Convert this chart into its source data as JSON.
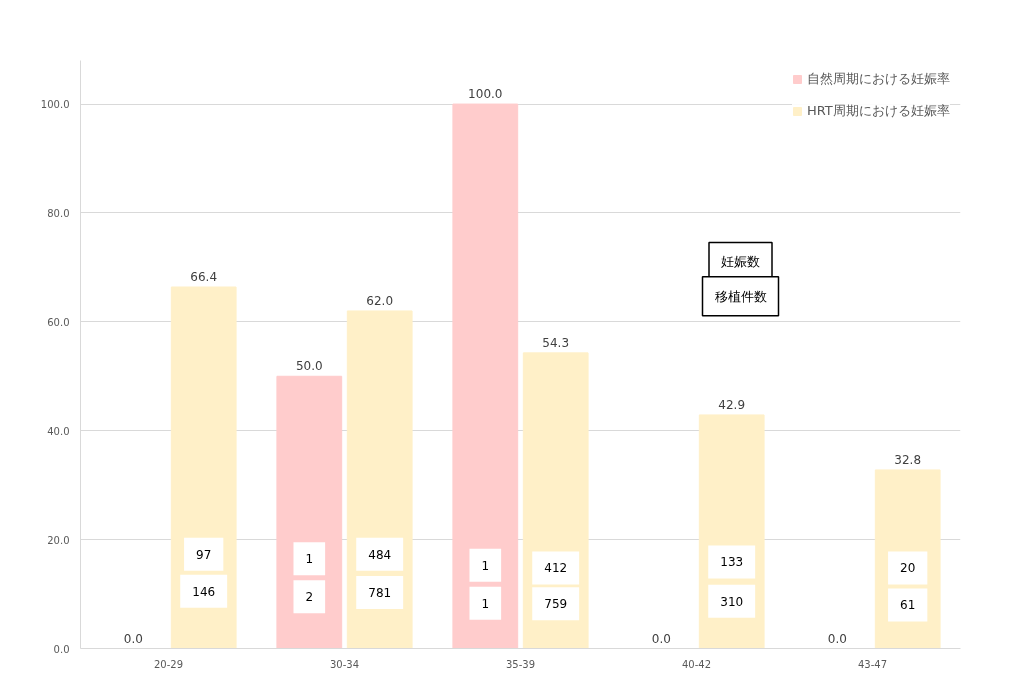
{
  "chart_data": {
    "type": "bar",
    "categories": [
      "20-29",
      "30-34",
      "35-39",
      "40-42",
      "43-47"
    ],
    "series": [
      {
        "name": "自然周期における妊娠率",
        "color": "#ffcccc",
        "values": [
          0.0,
          50.0,
          100.0,
          0.0,
          0.0
        ],
        "value_labels": [
          "0.0",
          "50.0",
          "100.0",
          "0.0",
          "0.0"
        ]
      },
      {
        "name": "HRT周期における妊娠率",
        "color": "#fff0c8",
        "values": [
          66.4,
          62.0,
          54.3,
          42.9,
          32.8
        ],
        "value_labels": [
          "66.4",
          "62.0",
          "54.3",
          "42.9",
          "32.8"
        ]
      }
    ],
    "ylim": [
      0,
      108
    ],
    "yticks": [
      {
        "value": 0,
        "label": "0.0"
      },
      {
        "value": 20,
        "label": "20.0"
      },
      {
        "value": 40,
        "label": "40.0"
      },
      {
        "value": 60,
        "label": "60.0"
      },
      {
        "value": 80,
        "label": "80.0"
      },
      {
        "value": 100,
        "label": "100.0"
      }
    ],
    "grid": "y",
    "legend": "top right",
    "annotations": [
      "妊娠数",
      "移植件数",
      {
        "text": "97",
        "x": "20-29",
        "y": 17.3
      },
      {
        "text": "146",
        "x": "20-29",
        "y": 10.5
      },
      {
        "text": "1",
        "x": "30-34",
        "y": 16.5
      },
      {
        "text": "2",
        "x": "30-34",
        "y": 9.5
      },
      {
        "text": "484",
        "x": "30-34",
        "y": 17.3
      },
      {
        "text": "781",
        "x": "30-34",
        "y": 10.3
      },
      {
        "text": "1",
        "x": "35-39",
        "y": 15.3
      },
      {
        "text": "1",
        "x": "35-39",
        "y": 8.3
      },
      {
        "text": "412",
        "x": "35-39",
        "y": 14.8
      },
      {
        "text": "759",
        "x": "35-39",
        "y": 8.2
      },
      {
        "text": "133",
        "x": "40-42",
        "y": 15.9
      },
      {
        "text": "310",
        "x": "40-42",
        "y": 8.7
      },
      {
        "text": "20",
        "x": "43-47",
        "y": 14.8
      },
      {
        "text": "61",
        "x": "43-47",
        "y": 8.0
      }
    ]
  }
}
